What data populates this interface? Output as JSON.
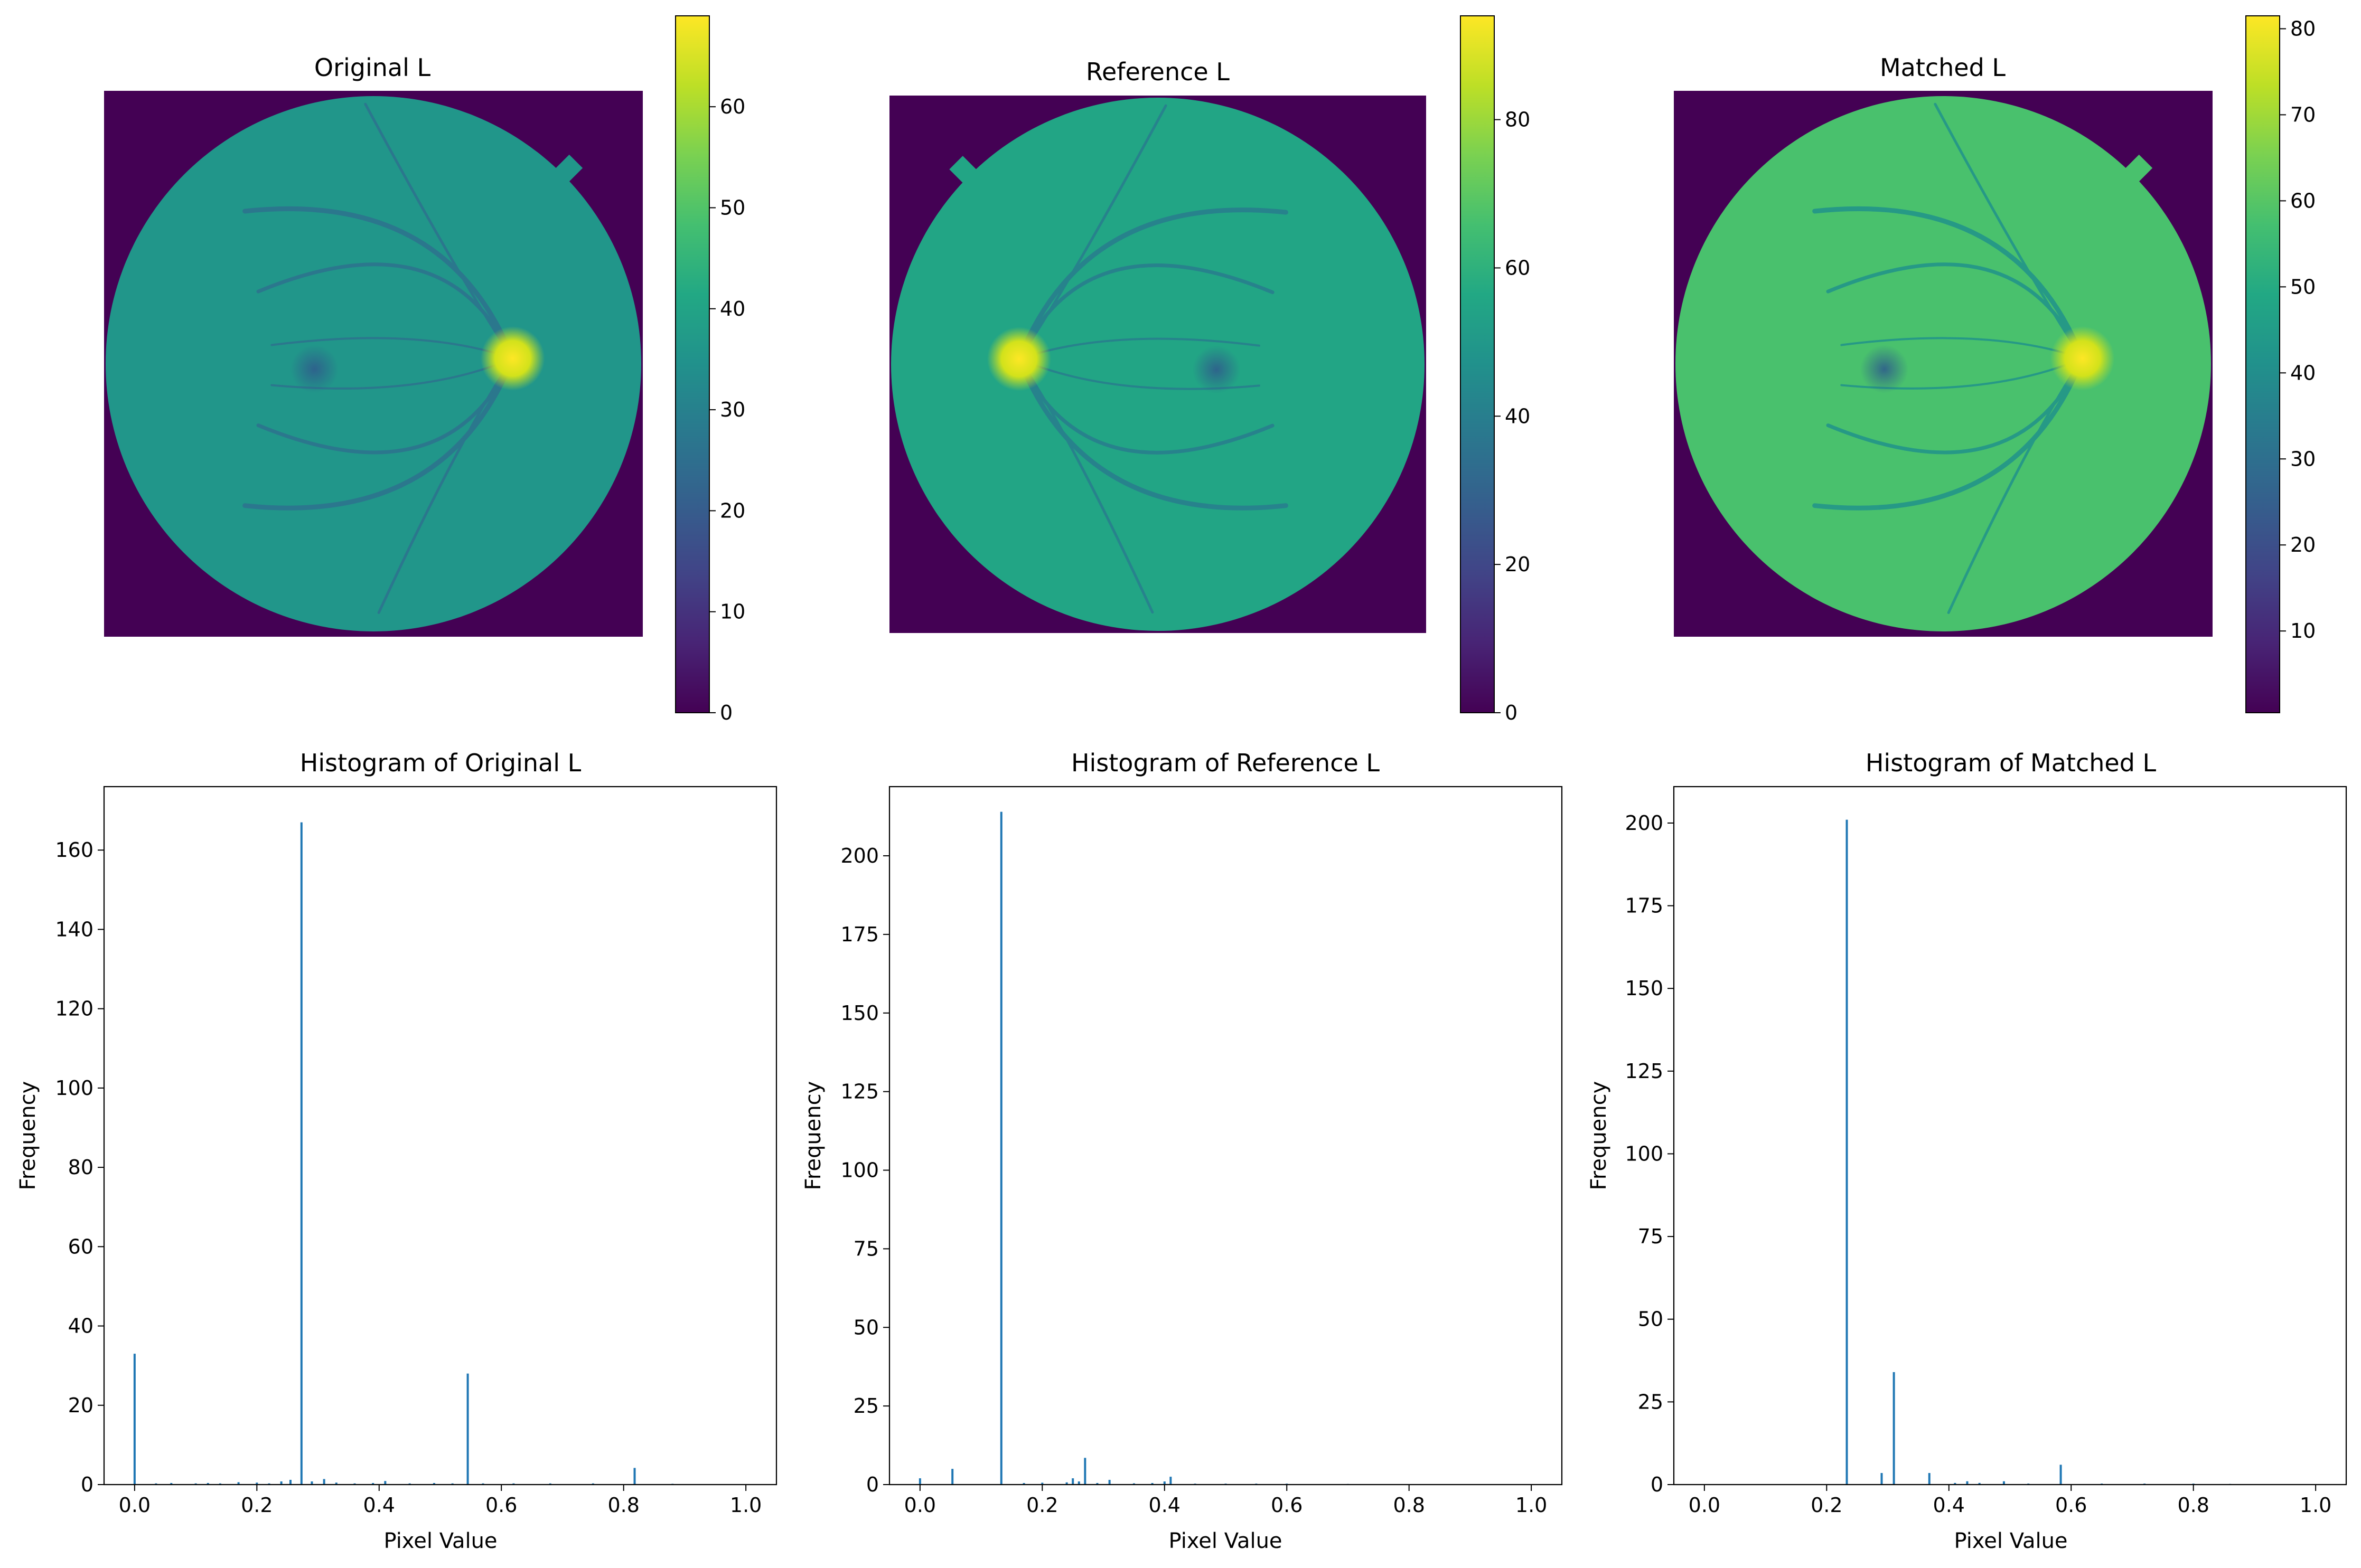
{
  "chart_data": [
    {
      "type": "heatmap",
      "title": "Original L",
      "colormap": "viridis",
      "colorbar": {
        "min": 0,
        "max": 69,
        "ticks": [
          0,
          10,
          20,
          30,
          40,
          50,
          60
        ]
      },
      "image": {
        "background_value": 0,
        "disc_mean": 36,
        "optic_disc": "right"
      }
    },
    {
      "type": "heatmap",
      "title": "Reference L",
      "colormap": "viridis",
      "colorbar": {
        "min": 0,
        "max": 94,
        "ticks": [
          0,
          20,
          40,
          60,
          80
        ]
      },
      "image": {
        "background_value": 0,
        "disc_mean": 55,
        "optic_disc": "left"
      }
    },
    {
      "type": "heatmap",
      "title": "Matched L",
      "colormap": "viridis",
      "colorbar": {
        "min": 0.5,
        "max": 81.5,
        "ticks": [
          10,
          20,
          30,
          40,
          50,
          60,
          70,
          80
        ]
      },
      "image": {
        "background_value": 0.5,
        "disc_mean": 58,
        "optic_disc": "right"
      }
    },
    {
      "type": "bar",
      "title": "Histogram of Original L",
      "xlabel": "Pixel Value",
      "ylabel": "Frequency",
      "xlim": [
        -0.05,
        1.05
      ],
      "ylim": [
        0,
        176
      ],
      "xticks": [
        0.0,
        0.2,
        0.4,
        0.6,
        0.8,
        1.0
      ],
      "yticks": [
        0,
        20,
        40,
        60,
        80,
        100,
        120,
        140,
        160
      ],
      "color": "#1f77b4",
      "bins": [
        {
          "x": 0.0,
          "y": 33
        },
        {
          "x": 0.035,
          "y": 0.3
        },
        {
          "x": 0.06,
          "y": 0.4
        },
        {
          "x": 0.1,
          "y": 0.3
        },
        {
          "x": 0.12,
          "y": 0.4
        },
        {
          "x": 0.14,
          "y": 0.3
        },
        {
          "x": 0.17,
          "y": 0.6
        },
        {
          "x": 0.2,
          "y": 0.5
        },
        {
          "x": 0.22,
          "y": 0.3
        },
        {
          "x": 0.24,
          "y": 0.8
        },
        {
          "x": 0.255,
          "y": 1.2
        },
        {
          "x": 0.273,
          "y": 167
        },
        {
          "x": 0.29,
          "y": 0.8
        },
        {
          "x": 0.31,
          "y": 1.4
        },
        {
          "x": 0.33,
          "y": 0.5
        },
        {
          "x": 0.36,
          "y": 0.3
        },
        {
          "x": 0.39,
          "y": 0.4
        },
        {
          "x": 0.41,
          "y": 0.9
        },
        {
          "x": 0.45,
          "y": 0.3
        },
        {
          "x": 0.49,
          "y": 0.4
        },
        {
          "x": 0.52,
          "y": 0.3
        },
        {
          "x": 0.545,
          "y": 28
        },
        {
          "x": 0.57,
          "y": 0.3
        },
        {
          "x": 0.62,
          "y": 0.3
        },
        {
          "x": 0.68,
          "y": 0.3
        },
        {
          "x": 0.75,
          "y": 0.3
        },
        {
          "x": 0.818,
          "y": 4.2
        },
        {
          "x": 0.88,
          "y": 0.2
        }
      ]
    },
    {
      "type": "bar",
      "title": "Histogram of Reference L",
      "xlabel": "Pixel Value",
      "ylabel": "Frequency",
      "xlim": [
        -0.05,
        1.05
      ],
      "ylim": [
        0,
        222
      ],
      "xticks": [
        0.0,
        0.2,
        0.4,
        0.6,
        0.8,
        1.0
      ],
      "yticks": [
        0,
        25,
        50,
        75,
        100,
        125,
        150,
        175,
        200
      ],
      "color": "#1f77b4",
      "bins": [
        {
          "x": 0.0,
          "y": 2
        },
        {
          "x": 0.053,
          "y": 5
        },
        {
          "x": 0.133,
          "y": 214
        },
        {
          "x": 0.17,
          "y": 0.5
        },
        {
          "x": 0.2,
          "y": 0.6
        },
        {
          "x": 0.24,
          "y": 0.7
        },
        {
          "x": 0.25,
          "y": 2
        },
        {
          "x": 0.26,
          "y": 1
        },
        {
          "x": 0.27,
          "y": 8.5
        },
        {
          "x": 0.29,
          "y": 0.5
        },
        {
          "x": 0.31,
          "y": 1.5
        },
        {
          "x": 0.35,
          "y": 0.4
        },
        {
          "x": 0.38,
          "y": 0.5
        },
        {
          "x": 0.4,
          "y": 1
        },
        {
          "x": 0.41,
          "y": 2.5
        },
        {
          "x": 0.45,
          "y": 0.3
        },
        {
          "x": 0.5,
          "y": 0.3
        },
        {
          "x": 0.55,
          "y": 0.3
        },
        {
          "x": 0.6,
          "y": 0.3
        },
        {
          "x": 0.7,
          "y": 0.2
        }
      ]
    },
    {
      "type": "bar",
      "title": "Histogram of Matched L",
      "xlabel": "Pixel Value",
      "ylabel": "Frequency",
      "xlim": [
        -0.05,
        1.05
      ],
      "ylim": [
        0,
        211
      ],
      "xticks": [
        0.0,
        0.2,
        0.4,
        0.6,
        0.8,
        1.0
      ],
      "yticks": [
        0,
        25,
        50,
        75,
        100,
        125,
        150,
        175,
        200
      ],
      "color": "#1f77b4",
      "bins": [
        {
          "x": 0.233,
          "y": 201
        },
        {
          "x": 0.29,
          "y": 3.5
        },
        {
          "x": 0.31,
          "y": 34
        },
        {
          "x": 0.368,
          "y": 3.5
        },
        {
          "x": 0.41,
          "y": 0.5
        },
        {
          "x": 0.43,
          "y": 1
        },
        {
          "x": 0.45,
          "y": 0.5
        },
        {
          "x": 0.49,
          "y": 1
        },
        {
          "x": 0.53,
          "y": 0.3
        },
        {
          "x": 0.583,
          "y": 6
        },
        {
          "x": 0.65,
          "y": 0.3
        },
        {
          "x": 0.72,
          "y": 0.3
        },
        {
          "x": 0.8,
          "y": 0.3
        },
        {
          "x": 0.86,
          "y": 0.2
        }
      ]
    }
  ]
}
